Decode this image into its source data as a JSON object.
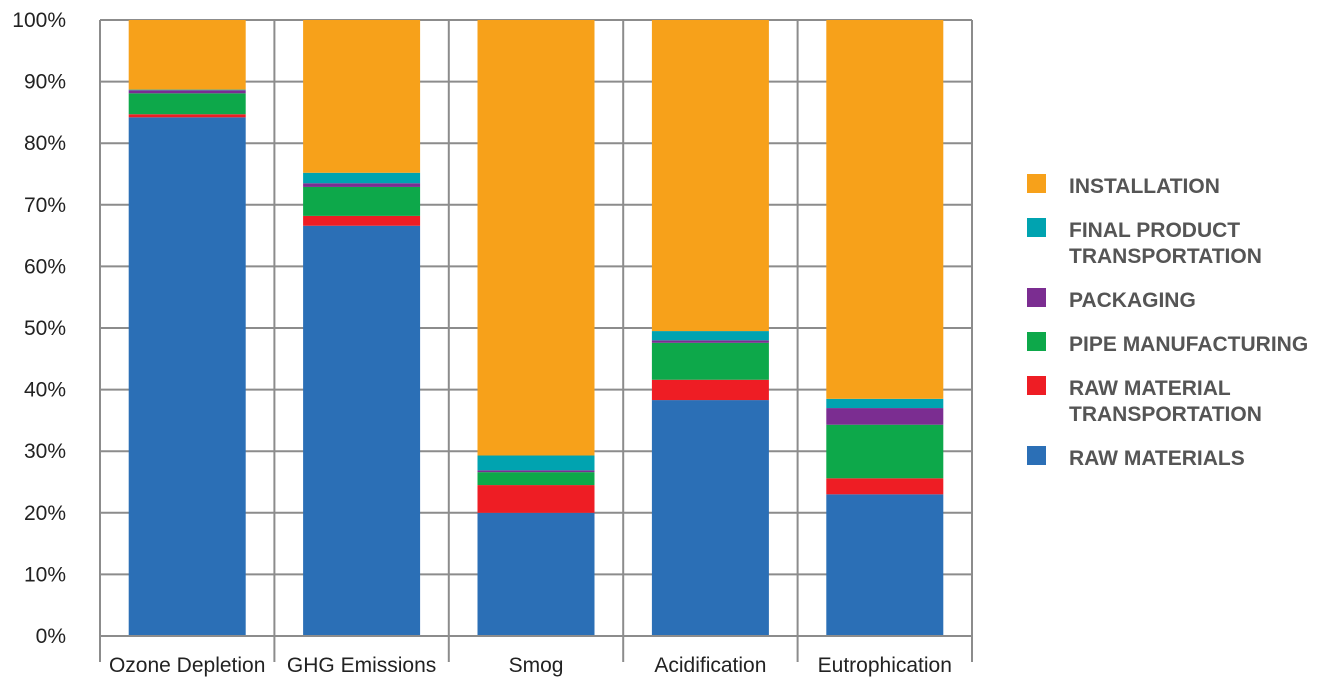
{
  "chart_data": {
    "type": "bar",
    "stacked": true,
    "categories": [
      "Ozone Depletion",
      "GHG Emissions",
      "Smog",
      "Acidification",
      "Eutrophication"
    ],
    "y_ticks": [
      "0%",
      "10%",
      "20%",
      "30%",
      "40%",
      "50%",
      "60%",
      "70%",
      "80%",
      "90%",
      "100%"
    ],
    "ylim": [
      0,
      100
    ],
    "grid": true,
    "legend_position": "right",
    "series": [
      {
        "name": "RAW MATERIALS",
        "legend_lines": [
          "RAW MATERIALS"
        ],
        "color": "#2B6FB6",
        "values": [
          84.2,
          66.6,
          20.0,
          38.3,
          23.0
        ]
      },
      {
        "name": "RAW MATERIAL TRANSPORTATION",
        "legend_lines": [
          "RAW MATERIAL",
          "TRANSPORTATION"
        ],
        "color": "#EE1D24",
        "values": [
          0.5,
          1.6,
          4.5,
          3.3,
          2.6
        ]
      },
      {
        "name": "PIPE MANUFACTURING",
        "legend_lines": [
          "PIPE MANUFACTURING"
        ],
        "color": "#0DA84A",
        "values": [
          3.4,
          4.7,
          2.1,
          6.0,
          8.7
        ]
      },
      {
        "name": "PACKAGING",
        "legend_lines": [
          "PACKAGING"
        ],
        "color": "#7B2D91",
        "values": [
          0.5,
          0.6,
          0.3,
          0.4,
          2.7
        ]
      },
      {
        "name": "FINAL PRODUCT TRANSPORTATION",
        "legend_lines": [
          "FINAL PRODUCT",
          "TRANSPORTATION"
        ],
        "color": "#00A3B0",
        "values": [
          0.1,
          1.7,
          2.4,
          1.5,
          1.5
        ]
      },
      {
        "name": "INSTALLATION",
        "legend_lines": [
          "INSTALLATION"
        ],
        "color": "#F7A11A",
        "values": [
          11.3,
          24.8,
          70.7,
          50.5,
          61.5
        ]
      }
    ],
    "legend_order": [
      "INSTALLATION",
      "FINAL PRODUCT TRANSPORTATION",
      "PACKAGING",
      "PIPE MANUFACTURING",
      "RAW MATERIAL TRANSPORTATION",
      "RAW MATERIALS"
    ],
    "colors": {
      "grid": "#8C8C8C",
      "axis": "#8C8C8C",
      "text": "#222222",
      "legend_text": "#555555"
    }
  }
}
